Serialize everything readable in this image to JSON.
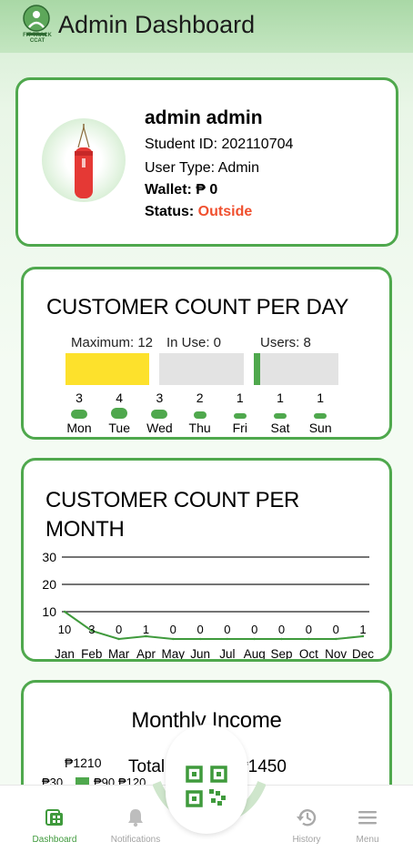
{
  "app": {
    "title": "Admin Dashboard",
    "logo_text": "FIT-TRACK CCAT"
  },
  "profile": {
    "name": "admin admin",
    "student_id_label": "Student ID: ",
    "student_id": "202110704",
    "user_type_label": "User Type: ",
    "user_type": "Admin",
    "wallet_label": "Wallet: ",
    "wallet_value": "₱ 0",
    "status_label": "Status: ",
    "status_value": "Outside",
    "status_color": "#f0502f"
  },
  "day_card": {
    "title": "CUSTOMER COUNT PER DAY",
    "maximum_label": "Maximum: 12",
    "in_use_label": "In Use: 0",
    "users_label": "Users: 8",
    "usage_bars": [
      {
        "fraction": 1.0,
        "color": "#fde12c"
      },
      {
        "fraction": 0.0,
        "color": "#e3e3e3"
      },
      {
        "fraction": 0.08,
        "color": "#4fa84d"
      }
    ],
    "days": [
      {
        "label": "Mon",
        "value": "3"
      },
      {
        "label": "Tue",
        "value": "4"
      },
      {
        "label": "Wed",
        "value": "3"
      },
      {
        "label": "Thu",
        "value": "2"
      },
      {
        "label": "Fri",
        "value": "1"
      },
      {
        "label": "Sat",
        "value": "1"
      },
      {
        "label": "Sun",
        "value": "1"
      }
    ]
  },
  "chart_data": {
    "type": "line",
    "title": "CUSTOMER COUNT PER MONTH",
    "categories": [
      "Jan",
      "Feb",
      "Mar",
      "Apr",
      "May",
      "Jun",
      "Jul",
      "Aug",
      "Sep",
      "Oct",
      "Nov",
      "Dec"
    ],
    "values": [
      10,
      3,
      0,
      1,
      0,
      0,
      0,
      0,
      0,
      0,
      0,
      1
    ],
    "value_labels": [
      "10",
      "3",
      "0",
      "1",
      "0",
      "0",
      "0",
      "0",
      "0",
      "0",
      "0",
      "1"
    ],
    "yticks": [
      "10",
      "20",
      "30"
    ],
    "ylim": [
      0,
      30
    ],
    "grid": true,
    "line_color": "#3f9a3c"
  },
  "income_card": {
    "title": "Monthly Income",
    "total_label_visible": "Total I",
    "total_value_visible": "₱1450",
    "labels": [
      "₱1210",
      "₱30",
      "₱90",
      "₱120"
    ]
  },
  "nav": {
    "dashboard": "Dashboard",
    "notifications": "Notifications",
    "history": "History",
    "menu": "Menu"
  }
}
